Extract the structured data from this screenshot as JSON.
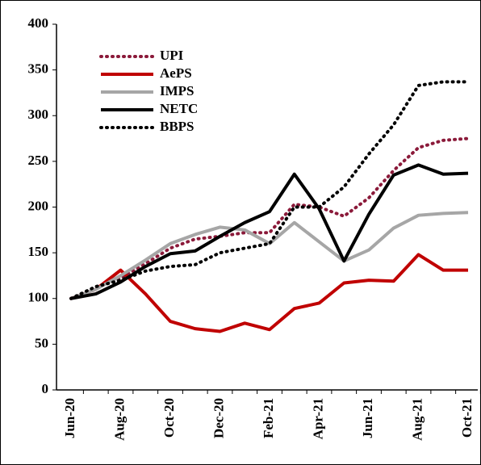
{
  "chart_data": {
    "type": "line",
    "categories": [
      "Jun-20",
      null,
      "Aug-20",
      null,
      "Oct-20",
      null,
      "Dec-20",
      null,
      "Feb-21",
      null,
      "Apr-21",
      null,
      "Jun-21",
      null,
      "Aug-21",
      null,
      "Oct-21"
    ],
    "series": [
      {
        "name": "UPI",
        "color": "#8b1a3a",
        "style": "dotted",
        "values": [
          100,
          112,
          122,
          138,
          155,
          165,
          168,
          172,
          172,
          203,
          200,
          190,
          210,
          240,
          265,
          273,
          275
        ]
      },
      {
        "name": "AePS",
        "color": "#c00000",
        "style": "solid",
        "values": [
          100,
          110,
          131,
          105,
          75,
          67,
          64,
          73,
          66,
          89,
          95,
          117,
          120,
          119,
          148,
          131,
          131
        ]
      },
      {
        "name": "IMPS",
        "color": "#a6a6a6",
        "style": "solid",
        "values": [
          100,
          110,
          125,
          142,
          160,
          170,
          178,
          175,
          160,
          183,
          162,
          141,
          153,
          177,
          191,
          193,
          194
        ]
      },
      {
        "name": "NETC",
        "color": "#000000",
        "style": "solid",
        "values": [
          100,
          105,
          118,
          135,
          149,
          152,
          168,
          183,
          195,
          236,
          198,
          141,
          192,
          235,
          246,
          236,
          237
        ]
      },
      {
        "name": "BBPS",
        "color": "#000000",
        "style": "dotted",
        "values": [
          100,
          113,
          120,
          130,
          135,
          137,
          150,
          155,
          160,
          200,
          200,
          222,
          258,
          290,
          333,
          337,
          337
        ]
      }
    ],
    "ylim": [
      0,
      400
    ],
    "yticks": [
      0,
      50,
      100,
      150,
      200,
      250,
      300,
      350,
      400
    ],
    "grid": false,
    "legend": "upper left"
  }
}
